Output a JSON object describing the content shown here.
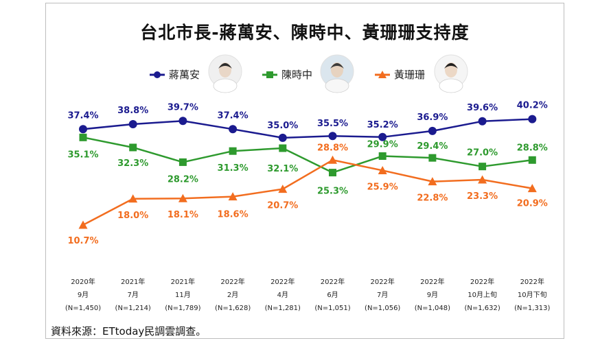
{
  "chart_data": {
    "type": "line",
    "title": "台北市長-蔣萬安、陳時中、黃珊珊支持度",
    "categories": [
      [
        "2020年",
        "9月",
        "(N=1,450)"
      ],
      [
        "2021年",
        "7月",
        "(N=1,214)"
      ],
      [
        "2021年",
        "11月",
        "(N=1,789)"
      ],
      [
        "2022年",
        "2月",
        "(N=1,628)"
      ],
      [
        "2022年",
        "4月",
        "(N=1,281)"
      ],
      [
        "2022年",
        "6月",
        "(N=1,051)"
      ],
      [
        "2022年",
        "7月",
        "(N=1,056)"
      ],
      [
        "2022年",
        "9月",
        "(N=1,048)"
      ],
      [
        "2022年",
        "10月上旬",
        "(N=1,632)"
      ],
      [
        "2022年",
        "10月下旬",
        "(N=1,313)"
      ]
    ],
    "series": [
      {
        "name": "蔣萬安",
        "color": "#1b1b8f",
        "marker": "circle",
        "values": [
          37.4,
          38.8,
          39.7,
          37.4,
          35.0,
          35.5,
          35.2,
          36.9,
          39.6,
          40.2
        ],
        "labels": [
          "37.4%",
          "38.8%",
          "39.7%",
          "37.4%",
          "35.0%",
          "35.5%",
          "35.2%",
          "36.9%",
          "39.6%",
          "40.2%"
        ]
      },
      {
        "name": "陳時中",
        "color": "#2e9a2e",
        "marker": "square",
        "values": [
          35.1,
          32.3,
          28.2,
          31.3,
          32.1,
          25.3,
          29.9,
          29.4,
          27.0,
          28.8
        ],
        "labels": [
          "35.1%",
          "32.3%",
          "28.2%",
          "31.3%",
          "32.1%",
          "25.3%",
          "29.9%",
          "29.4%",
          "27.0%",
          "28.8%"
        ]
      },
      {
        "name": "黃珊珊",
        "color": "#f26d1f",
        "marker": "triangle",
        "values": [
          10.7,
          18.0,
          18.1,
          18.6,
          20.7,
          28.8,
          25.9,
          22.8,
          23.3,
          20.9
        ],
        "labels": [
          "10.7%",
          "18.0%",
          "18.1%",
          "18.6%",
          "20.7%",
          "28.8%",
          "25.9%",
          "22.8%",
          "23.3%",
          "20.9%"
        ]
      }
    ],
    "legend_position": "top",
    "grid": false
  },
  "source": "資料來源：ETtoday民調雲調查。"
}
